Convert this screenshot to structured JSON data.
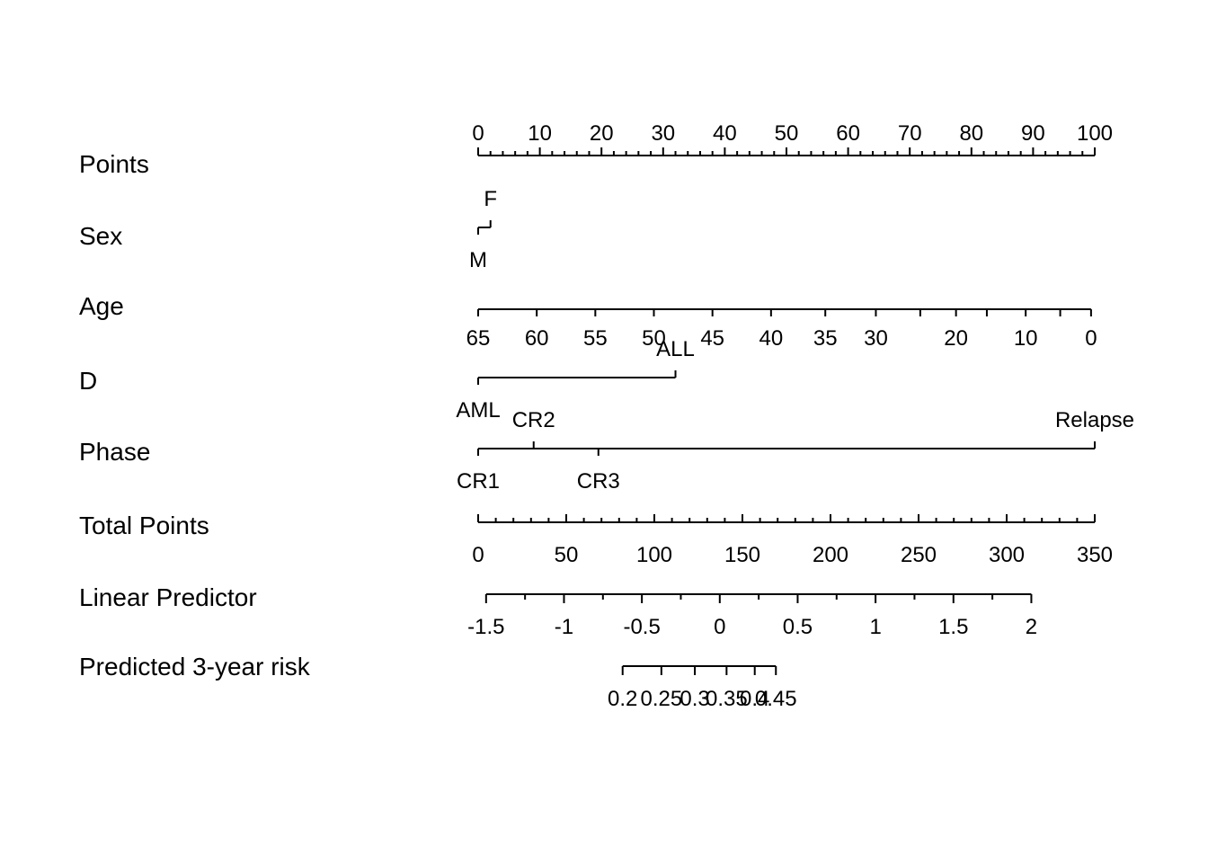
{
  "chart_data": {
    "type": "nomogram",
    "rows": [
      {
        "name": "Points",
        "kind": "scale",
        "min": 0,
        "max": 100,
        "major": [
          0,
          10,
          20,
          30,
          40,
          50,
          60,
          70,
          80,
          90,
          100
        ],
        "minor_step": 2,
        "label_pos": "above"
      },
      {
        "name": "Sex",
        "kind": "categorical",
        "levels": [
          {
            "label": "M",
            "points": 0,
            "label_pos": "below"
          },
          {
            "label": "F",
            "points": 2,
            "label_pos": "above"
          }
        ]
      },
      {
        "name": "Age",
        "kind": "mapped",
        "ticks": [
          {
            "label": "65",
            "points": 0
          },
          {
            "label": "60",
            "points": 9.5
          },
          {
            "label": "55",
            "points": 19
          },
          {
            "label": "50",
            "points": 28.5
          },
          {
            "label": "45",
            "points": 38
          },
          {
            "label": "40",
            "points": 47.5
          },
          {
            "label": "35",
            "points": 56.3
          },
          {
            "label": "30",
            "points": 64.5
          },
          {
            "label": "",
            "points": 71.7
          },
          {
            "label": "20",
            "points": 77.5
          },
          {
            "label": "",
            "points": 82.5
          },
          {
            "label": "10",
            "points": 88.8
          },
          {
            "label": "",
            "points": 94.4
          },
          {
            "label": "0",
            "points": 99.4
          }
        ],
        "label_pos": "below"
      },
      {
        "name": "D",
        "kind": "categorical",
        "levels": [
          {
            "label": "AML",
            "points": 0,
            "label_pos": "below"
          },
          {
            "label": "ALL",
            "points": 32,
            "label_pos": "above"
          }
        ]
      },
      {
        "name": "Phase",
        "kind": "categorical",
        "levels": [
          {
            "label": "CR1",
            "points": 0,
            "label_pos": "below"
          },
          {
            "label": "CR2",
            "points": 9,
            "label_pos": "above"
          },
          {
            "label": "CR3",
            "points": 19.5,
            "label_pos": "below"
          },
          {
            "label": "Relapse",
            "points": 100,
            "label_pos": "above"
          }
        ]
      },
      {
        "name": "Total Points",
        "kind": "scale",
        "min": 0,
        "max": 350,
        "major": [
          0,
          50,
          100,
          150,
          200,
          250,
          300,
          350
        ],
        "minor_step": 10,
        "label_pos": "below"
      },
      {
        "name": "Linear Predictor",
        "kind": "linear",
        "total_at_min": 4.5,
        "total_at_max": 314,
        "min": -1.5,
        "max": 2,
        "ticks": [
          {
            "value": -1.5,
            "label": "-1.5"
          },
          {
            "value": -1.25,
            "label": ""
          },
          {
            "value": -1,
            "label": "-1"
          },
          {
            "value": -0.75,
            "label": ""
          },
          {
            "value": -0.5,
            "label": "-0.5"
          },
          {
            "value": -0.25,
            "label": ""
          },
          {
            "value": 0,
            "label": "0"
          },
          {
            "value": 0.25,
            "label": ""
          },
          {
            "value": 0.5,
            "label": "0.5"
          },
          {
            "value": 0.75,
            "label": ""
          },
          {
            "value": 1,
            "label": "1"
          },
          {
            "value": 1.25,
            "label": ""
          },
          {
            "value": 1.5,
            "label": "1.5"
          },
          {
            "value": 1.75,
            "label": ""
          },
          {
            "value": 2,
            "label": "2"
          }
        ],
        "label_pos": "below"
      },
      {
        "name": "Predicted 3-year risk",
        "kind": "mapped_total",
        "ticks": [
          {
            "label": "0.2",
            "total": 82
          },
          {
            "label": "0.25",
            "total": 104
          },
          {
            "label": "0.3",
            "total": 123
          },
          {
            "label": "0.35",
            "total": 141
          },
          {
            "label": "0.4",
            "total": 157
          },
          {
            "label": "0.45",
            "total": 169
          }
        ],
        "label_pos": "below"
      }
    ]
  }
}
